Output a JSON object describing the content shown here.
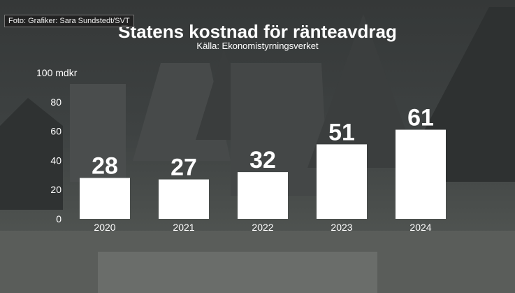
{
  "credit": "Foto: Grafiker: Sara Sundstedt/SVT",
  "chart_data": {
    "type": "bar",
    "title": "Statens kostnad för ränteavdrag",
    "subtitle": "Källa: Ekonomistyrningsverket",
    "ylabel": "mdkr",
    "categories": [
      "2020",
      "2021",
      "2022",
      "2023",
      "2024"
    ],
    "values": [
      28,
      27,
      32,
      51,
      61
    ],
    "yticks": [
      "0",
      "20",
      "40",
      "60",
      "80",
      "100 mdkr"
    ],
    "ylim": [
      0,
      100
    ],
    "grid": false,
    "bar_color": "#ffffff"
  }
}
